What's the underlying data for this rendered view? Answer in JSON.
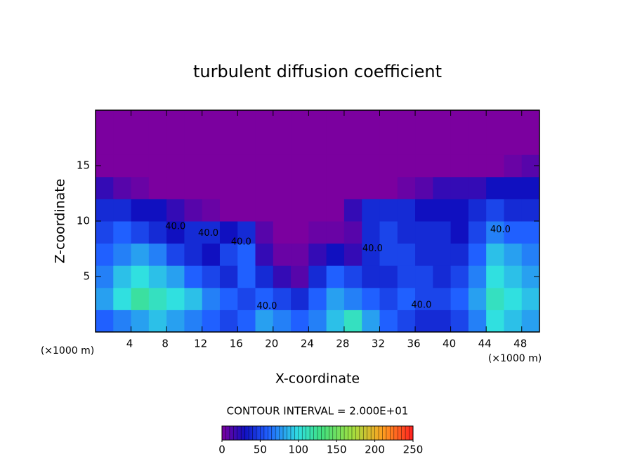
{
  "chart_data": {
    "type": "heatmap",
    "title": "turbulent diffusion coefficient",
    "xlabel": "X-coordinate",
    "ylabel": "Z-coordinate",
    "x_unit_labels": [
      "(×1000 m)",
      "(×1000 m)"
    ],
    "contour_interval_text": "CONTOUR INTERVAL = 2.000E+01",
    "xlim": [
      0,
      50
    ],
    "ylim": [
      0,
      20
    ],
    "xticks": [
      4,
      8,
      12,
      16,
      20,
      24,
      28,
      32,
      36,
      40,
      44,
      48
    ],
    "yticks": [
      5,
      10,
      15
    ],
    "colorbar_lim": [
      0,
      250
    ],
    "colorbar_ticks": [
      0,
      50,
      100,
      150,
      200,
      250
    ],
    "colorscale": [
      [
        0,
        "#7b009f"
      ],
      [
        30,
        "#1010c0"
      ],
      [
        60,
        "#2060ff"
      ],
      [
        100,
        "#30e0e0"
      ],
      [
        130,
        "#40e080"
      ],
      [
        170,
        "#a0e040"
      ],
      [
        210,
        "#ffa020"
      ],
      [
        250,
        "#ff2020"
      ]
    ],
    "z": [
      [
        60,
        70,
        80,
        90,
        80,
        70,
        60,
        50,
        60,
        80,
        70,
        60,
        70,
        90,
        110,
        80,
        60,
        50,
        40,
        40,
        50,
        70,
        100,
        90,
        80
      ],
      [
        80,
        100,
        120,
        110,
        100,
        90,
        70,
        60,
        50,
        60,
        50,
        40,
        60,
        80,
        70,
        60,
        50,
        60,
        50,
        50,
        60,
        80,
        110,
        100,
        90
      ],
      [
        70,
        90,
        100,
        90,
        80,
        60,
        50,
        40,
        60,
        40,
        20,
        10,
        40,
        60,
        50,
        40,
        40,
        50,
        50,
        40,
        50,
        70,
        100,
        90,
        80
      ],
      [
        60,
        70,
        80,
        70,
        50,
        40,
        30,
        50,
        60,
        20,
        5,
        5,
        20,
        30,
        20,
        40,
        50,
        50,
        40,
        40,
        40,
        60,
        90,
        80,
        70
      ],
      [
        50,
        60,
        50,
        40,
        30,
        40,
        40,
        30,
        40,
        10,
        0,
        0,
        5,
        5,
        10,
        40,
        50,
        40,
        40,
        40,
        30,
        50,
        70,
        60,
        60
      ],
      [
        40,
        40,
        30,
        30,
        20,
        10,
        5,
        0,
        0,
        0,
        0,
        0,
        0,
        0,
        20,
        40,
        40,
        40,
        30,
        30,
        30,
        40,
        50,
        40,
        40
      ],
      [
        20,
        10,
        5,
        0,
        0,
        0,
        0,
        0,
        0,
        0,
        0,
        0,
        0,
        0,
        0,
        0,
        0,
        5,
        10,
        20,
        20,
        20,
        30,
        30,
        30
      ],
      [
        0,
        0,
        0,
        0,
        0,
        0,
        0,
        0,
        0,
        0,
        0,
        0,
        0,
        0,
        0,
        0,
        0,
        0,
        0,
        0,
        0,
        0,
        0,
        5,
        10
      ],
      [
        0,
        0,
        0,
        0,
        0,
        0,
        0,
        0,
        0,
        0,
        0,
        0,
        0,
        0,
        0,
        0,
        0,
        0,
        0,
        0,
        0,
        0,
        0,
        0,
        0
      ],
      [
        0,
        0,
        0,
        0,
        0,
        0,
        0,
        0,
        0,
        0,
        0,
        0,
        0,
        0,
        0,
        0,
        0,
        0,
        0,
        0,
        0,
        0,
        0,
        0,
        0
      ]
    ],
    "contour_labels": [
      {
        "x": 9.0,
        "y": 9.5,
        "value": 40,
        "label": "40.0"
      },
      {
        "x": 12.7,
        "y": 8.9,
        "value": 40,
        "label": "40.0"
      },
      {
        "x": 16.4,
        "y": 8.1,
        "value": 40,
        "label": "40.0"
      },
      {
        "x": 31.2,
        "y": 7.5,
        "value": 40,
        "label": "40.0"
      },
      {
        "x": 45.6,
        "y": 9.2,
        "value": 40,
        "label": "40.0"
      },
      {
        "x": 36.7,
        "y": 2.4,
        "value": 40,
        "label": "40.0"
      },
      {
        "x": 19.3,
        "y": 2.3,
        "value": 40,
        "label": "40.0"
      }
    ]
  }
}
